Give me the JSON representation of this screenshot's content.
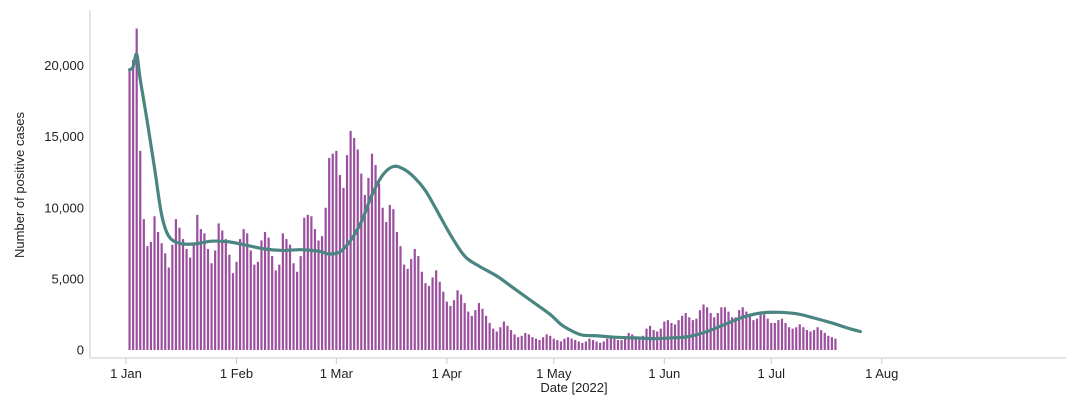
{
  "chart_data": {
    "type": "bar",
    "xlabel": "Date [2022]",
    "ylabel": "Number of positive cases",
    "ylim": [
      0,
      23500
    ],
    "grid": false,
    "legend": "none",
    "x_ticks": [
      {
        "date": "2022-01-01",
        "label": "1 Jan"
      },
      {
        "date": "2022-02-01",
        "label": "1 Feb"
      },
      {
        "date": "2022-03-01",
        "label": "1 Mar"
      },
      {
        "date": "2022-04-01",
        "label": "1 Apr"
      },
      {
        "date": "2022-05-01",
        "label": "1 May"
      },
      {
        "date": "2022-06-01",
        "label": "1 Jun"
      },
      {
        "date": "2022-07-01",
        "label": "1 Jul"
      },
      {
        "date": "2022-08-01",
        "label": "1 Aug"
      }
    ],
    "y_ticks": [
      {
        "value": 0,
        "label": "0"
      },
      {
        "value": 5000,
        "label": "5,000"
      },
      {
        "value": 10000,
        "label": "10,000"
      },
      {
        "value": 15000,
        "label": "15,000"
      },
      {
        "value": 20000,
        "label": "20,000"
      }
    ],
    "colors": {
      "bars": "#9b4f9e",
      "line": "#4a8582",
      "axis": "#c8c8c8"
    },
    "series": [
      {
        "type": "bar",
        "start_date": "2022-01-02",
        "values": [
          19700,
          20400,
          22600,
          14000,
          9200,
          7300,
          7600,
          9400,
          8300,
          7500,
          6800,
          5800,
          7400,
          9200,
          8600,
          7800,
          7100,
          6500,
          7400,
          9500,
          8500,
          8200,
          7100,
          6100,
          7000,
          8900,
          8400,
          7800,
          6700,
          5400,
          6200,
          7800,
          8500,
          8200,
          7000,
          6000,
          6200,
          7700,
          8300,
          7900,
          6600,
          5600,
          6000,
          8200,
          7800,
          7400,
          6100,
          5500,
          6600,
          9300,
          9500,
          9400,
          8500,
          7700,
          8000,
          10000,
          13500,
          13800,
          14000,
          12300,
          11400,
          13700,
          15400,
          14900,
          14100,
          12400,
          10900,
          12100,
          13800,
          13000,
          11700,
          10000,
          9000,
          10200,
          9900,
          8300,
          7300,
          6000,
          5700,
          6400,
          7100,
          6600,
          5500,
          4700,
          4500,
          5100,
          5600,
          4800,
          4100,
          3400,
          3100,
          3500,
          4200,
          3900,
          3300,
          2700,
          2400,
          2800,
          3300,
          2900,
          2400,
          1900,
          1500,
          1300,
          1600,
          2000,
          1700,
          1400,
          1100,
          900,
          1000,
          1200,
          1100,
          900,
          800,
          700,
          900,
          1100,
          1000,
          800,
          700,
          600,
          800,
          900,
          800,
          700,
          600,
          500,
          600,
          800,
          700,
          600,
          500,
          600,
          800,
          900,
          800,
          700,
          700,
          900,
          1200,
          1100,
          900,
          800,
          1000,
          1500,
          1700,
          1400,
          1300,
          1500,
          2000,
          2100,
          1900,
          1800,
          2100,
          2400,
          2600,
          2300,
          2100,
          2200,
          2800,
          3200,
          3000,
          2600,
          2300,
          2600,
          3000,
          3000,
          2700,
          2300,
          2300,
          2800,
          3000,
          2700,
          2400,
          2100,
          2200,
          2600,
          2500,
          2200,
          1900,
          1900,
          2100,
          2200,
          1900,
          1600,
          1500,
          1600,
          1800,
          1600,
          1400,
          1300,
          1400,
          1600,
          1400,
          1200,
          1000,
          900,
          800
        ]
      },
      {
        "type": "line",
        "points": [
          [
            "2022-01-02",
            19700
          ],
          [
            "2022-01-03",
            19900
          ],
          [
            "2022-01-04",
            20800
          ],
          [
            "2022-01-05",
            19000
          ],
          [
            "2022-01-07",
            16000
          ],
          [
            "2022-01-09",
            12800
          ],
          [
            "2022-01-11",
            9500
          ],
          [
            "2022-01-13",
            8000
          ],
          [
            "2022-01-16",
            7500
          ],
          [
            "2022-01-20",
            7450
          ],
          [
            "2022-01-25",
            7650
          ],
          [
            "2022-01-30",
            7600
          ],
          [
            "2022-02-04",
            7350
          ],
          [
            "2022-02-09",
            7100
          ],
          [
            "2022-02-14",
            7000
          ],
          [
            "2022-02-19",
            7050
          ],
          [
            "2022-02-24",
            6950
          ],
          [
            "2022-02-27",
            6750
          ],
          [
            "2022-03-02",
            6900
          ],
          [
            "2022-03-05",
            7700
          ],
          [
            "2022-03-08",
            9000
          ],
          [
            "2022-03-11",
            10900
          ],
          [
            "2022-03-14",
            12300
          ],
          [
            "2022-03-17",
            12900
          ],
          [
            "2022-03-20",
            12700
          ],
          [
            "2022-03-23",
            12100
          ],
          [
            "2022-03-26",
            11200
          ],
          [
            "2022-03-29",
            9900
          ],
          [
            "2022-04-02",
            8100
          ],
          [
            "2022-04-06",
            6600
          ],
          [
            "2022-04-10",
            5900
          ],
          [
            "2022-04-15",
            5200
          ],
          [
            "2022-04-20",
            4300
          ],
          [
            "2022-04-25",
            3400
          ],
          [
            "2022-04-30",
            2500
          ],
          [
            "2022-05-03",
            1800
          ],
          [
            "2022-05-06",
            1350
          ],
          [
            "2022-05-09",
            1050
          ],
          [
            "2022-05-13",
            1000
          ],
          [
            "2022-05-18",
            900
          ],
          [
            "2022-05-24",
            850
          ],
          [
            "2022-05-29",
            800
          ],
          [
            "2022-06-03",
            850
          ],
          [
            "2022-06-08",
            950
          ],
          [
            "2022-06-13",
            1300
          ],
          [
            "2022-06-18",
            1800
          ],
          [
            "2022-06-23",
            2300
          ],
          [
            "2022-06-28",
            2600
          ],
          [
            "2022-07-03",
            2650
          ],
          [
            "2022-07-08",
            2550
          ],
          [
            "2022-07-13",
            2250
          ],
          [
            "2022-07-18",
            1900
          ],
          [
            "2022-07-23",
            1500
          ],
          [
            "2022-07-26",
            1300
          ]
        ]
      }
    ]
  }
}
